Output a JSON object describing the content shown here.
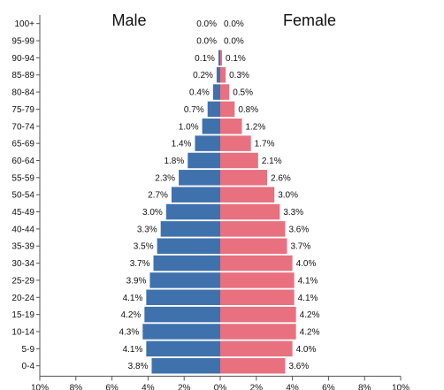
{
  "chart_data": {
    "type": "bar",
    "orientation": "horizontal",
    "layout": "population-pyramid",
    "left_title": "Male",
    "right_title": "Female",
    "categories": [
      "100+",
      "95-99",
      "90-94",
      "85-89",
      "80-84",
      "75-79",
      "70-74",
      "65-69",
      "60-64",
      "55-59",
      "50-54",
      "45-49",
      "40-44",
      "35-39",
      "30-34",
      "25-29",
      "20-24",
      "15-19",
      "10-14",
      "5-9",
      "0-4"
    ],
    "series": [
      {
        "name": "Male",
        "color": "#3f72ad",
        "values": [
          0.0,
          0.0,
          0.1,
          0.2,
          0.4,
          0.7,
          1.0,
          1.4,
          1.8,
          2.3,
          2.7,
          3.0,
          3.3,
          3.5,
          3.7,
          3.9,
          4.1,
          4.2,
          4.3,
          4.1,
          3.8
        ],
        "labels": [
          "0.0%",
          "0.0%",
          "0.1%",
          "0.2%",
          "0.4%",
          "0.7%",
          "1.0%",
          "1.4%",
          "1.8%",
          "2.3%",
          "2.7%",
          "3.0%",
          "3.3%",
          "3.5%",
          "3.7%",
          "3.9%",
          "4.1%",
          "4.2%",
          "4.3%",
          "4.1%",
          "3.8%"
        ]
      },
      {
        "name": "Female",
        "color": "#e8707f",
        "values": [
          0.0,
          0.0,
          0.1,
          0.3,
          0.5,
          0.8,
          1.2,
          1.7,
          2.1,
          2.6,
          3.0,
          3.3,
          3.6,
          3.7,
          4.0,
          4.1,
          4.1,
          4.2,
          4.2,
          4.0,
          3.6
        ],
        "labels": [
          "0.0%",
          "0.0%",
          "0.1%",
          "0.3%",
          "0.5%",
          "0.8%",
          "1.2%",
          "1.7%",
          "2.1%",
          "2.6%",
          "3.0%",
          "3.3%",
          "3.6%",
          "3.7%",
          "4.0%",
          "4.1%",
          "4.1%",
          "4.2%",
          "4.2%",
          "4.0%",
          "3.6%"
        ]
      }
    ],
    "x_range": [
      -10,
      10
    ],
    "x_ticks": [
      -10,
      -8,
      -6,
      -4,
      -2,
      0,
      2,
      4,
      6,
      8,
      10
    ],
    "x_tick_labels": [
      "10%",
      "8%",
      "6%",
      "4%",
      "2%",
      "0%",
      "2%",
      "4%",
      "6%",
      "8%",
      "10%"
    ],
    "grid": false
  }
}
